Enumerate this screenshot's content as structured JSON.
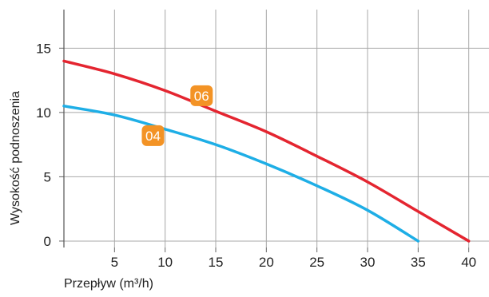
{
  "chart_data": {
    "type": "line",
    "title": "",
    "xlabel": "Przepływ (m³/h)",
    "ylabel": "Wysokość podnoszenia",
    "xlim": [
      0,
      42
    ],
    "ylim": [
      -0.5,
      18
    ],
    "x_ticks": [
      5,
      10,
      15,
      20,
      25,
      30,
      35,
      40
    ],
    "y_ticks": [
      0,
      5,
      10,
      15
    ],
    "grid": true,
    "series": [
      {
        "name": "06",
        "color": "#e42530",
        "x": [
          0,
          5,
          10,
          15,
          20,
          25,
          30,
          35,
          40
        ],
        "y": [
          14.0,
          13.0,
          11.7,
          10.1,
          8.5,
          6.6,
          4.6,
          2.3,
          0.0
        ]
      },
      {
        "name": "04",
        "color": "#1eaee6",
        "x": [
          0,
          5,
          10,
          15,
          20,
          25,
          30,
          35
        ],
        "y": [
          10.5,
          9.8,
          8.7,
          7.5,
          6.0,
          4.3,
          2.4,
          0.0
        ]
      }
    ],
    "labels": [
      {
        "text": "06",
        "x": 13.6,
        "y": 11.3,
        "color": "#f39325"
      },
      {
        "text": "04",
        "x": 8.8,
        "y": 8.2,
        "color": "#f39325"
      }
    ]
  }
}
